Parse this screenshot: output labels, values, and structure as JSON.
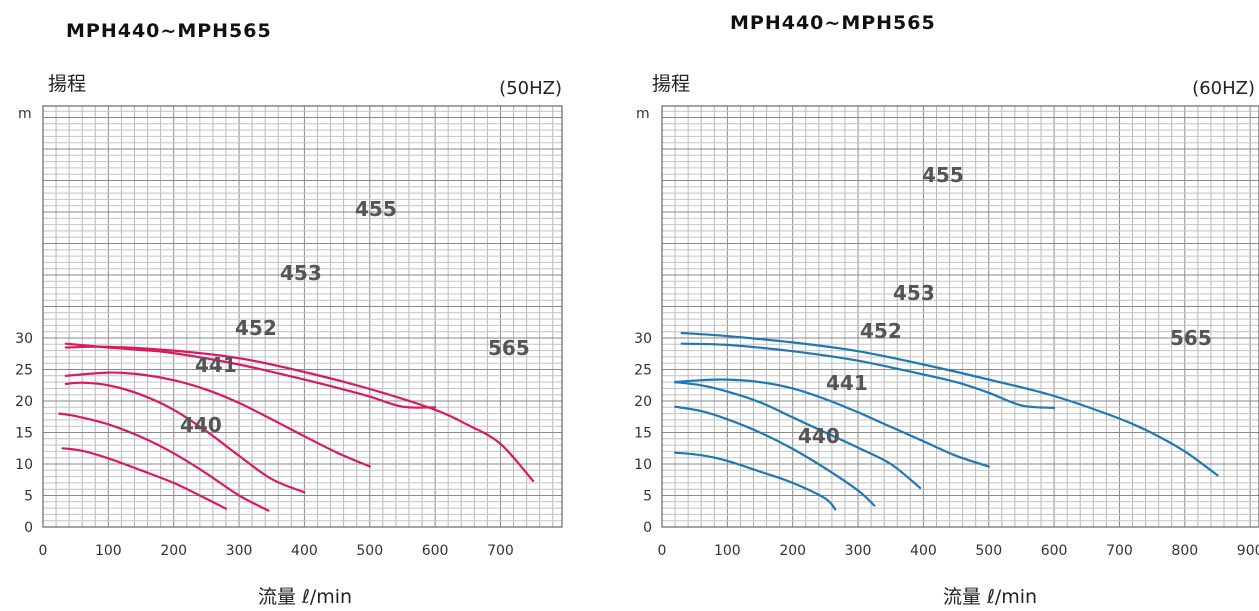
{
  "chart_data": [
    {
      "type": "line",
      "title": "MPH440~MPH565",
      "frequency": "(50HZ)",
      "ylabel": "揚程",
      "yunit": "m",
      "xlabel": "流量 ℓ/min",
      "xlim": [
        0,
        800
      ],
      "ylim": [
        0,
        32
      ],
      "xticks": [
        "0",
        "100",
        "200",
        "300",
        "400",
        "500",
        "600",
        "700"
      ],
      "yticks": [
        "0",
        "5",
        "10",
        "15",
        "20",
        "25",
        "30"
      ],
      "grid": true,
      "line_color": "#d81b60",
      "series": [
        {
          "name": "440",
          "points": [
            [
              30,
              12.5
            ],
            [
              60,
              12.1
            ],
            [
              100,
              10.9
            ],
            [
              150,
              9.0
            ],
            [
              200,
              7.0
            ],
            [
              240,
              5.0
            ],
            [
              280,
              2.9
            ]
          ]
        },
        {
          "name": "441",
          "points": [
            [
              25,
              18.0
            ],
            [
              50,
              17.6
            ],
            [
              100,
              16.3
            ],
            [
              150,
              14.3
            ],
            [
              200,
              11.7
            ],
            [
              250,
              8.5
            ],
            [
              300,
              5.0
            ],
            [
              345,
              2.6
            ]
          ]
        },
        {
          "name": "452",
          "points": [
            [
              35,
              22.7
            ],
            [
              60,
              22.9
            ],
            [
              100,
              22.5
            ],
            [
              150,
              21.0
            ],
            [
              200,
              18.6
            ],
            [
              250,
              15.2
            ],
            [
              300,
              11.3
            ],
            [
              350,
              7.6
            ],
            [
              400,
              5.5
            ]
          ]
        },
        {
          "name": "453",
          "points": [
            [
              35,
              24.0
            ],
            [
              100,
              24.5
            ],
            [
              150,
              24.2
            ],
            [
              200,
              23.3
            ],
            [
              250,
              21.8
            ],
            [
              300,
              19.7
            ],
            [
              350,
              17.1
            ],
            [
              400,
              14.4
            ],
            [
              450,
              11.8
            ],
            [
              500,
              9.6
            ]
          ]
        },
        {
          "name": "455",
          "points": [
            [
              35,
              29.1
            ],
            [
              100,
              28.5
            ],
            [
              150,
              28.1
            ],
            [
              200,
              27.6
            ],
            [
              300,
              25.8
            ],
            [
              400,
              23.4
            ],
            [
              450,
              22.1
            ],
            [
              500,
              20.7
            ],
            [
              550,
              19.1
            ],
            [
              600,
              19.0
            ]
          ]
        },
        {
          "name": "565",
          "points": [
            [
              35,
              28.5
            ],
            [
              100,
              28.6
            ],
            [
              200,
              28.0
            ],
            [
              300,
              26.8
            ],
            [
              400,
              24.6
            ],
            [
              500,
              21.9
            ],
            [
              600,
              18.6
            ],
            [
              650,
              16.2
            ],
            [
              700,
              13.2
            ],
            [
              750,
              7.3
            ]
          ]
        }
      ],
      "series_labels": [
        "455",
        "453",
        "452",
        "441",
        "440",
        "565"
      ]
    },
    {
      "type": "line",
      "title": "MPH440~MPH565",
      "frequency": "(60HZ)",
      "ylabel": "揚程",
      "yunit": "m",
      "xlabel": "流量 ℓ/min",
      "xlim": [
        0,
        920
      ],
      "ylim": [
        0,
        32
      ],
      "xticks": [
        "0",
        "100",
        "200",
        "300",
        "400",
        "500",
        "600",
        "700",
        "800",
        "900"
      ],
      "yticks": [
        "0",
        "5",
        "10",
        "15",
        "20",
        "25",
        "30"
      ],
      "grid": true,
      "line_color": "#1f78b4",
      "series": [
        {
          "name": "440",
          "points": [
            [
              20,
              11.8
            ],
            [
              60,
              11.4
            ],
            [
              100,
              10.5
            ],
            [
              150,
              8.8
            ],
            [
              200,
              7.0
            ],
            [
              250,
              4.5
            ],
            [
              265,
              2.8
            ]
          ]
        },
        {
          "name": "441",
          "points": [
            [
              20,
              19.1
            ],
            [
              60,
              18.4
            ],
            [
              100,
              17.1
            ],
            [
              150,
              15.0
            ],
            [
              200,
              12.4
            ],
            [
              250,
              9.3
            ],
            [
              300,
              5.8
            ],
            [
              325,
              3.4
            ]
          ]
        },
        {
          "name": "452",
          "points": [
            [
              20,
              23.0
            ],
            [
              60,
              22.5
            ],
            [
              100,
              21.5
            ],
            [
              150,
              19.8
            ],
            [
              200,
              17.4
            ],
            [
              250,
              15.0
            ],
            [
              300,
              12.6
            ],
            [
              350,
              10.0
            ],
            [
              395,
              6.2
            ]
          ]
        },
        {
          "name": "453",
          "points": [
            [
              20,
              23.0
            ],
            [
              60,
              23.3
            ],
            [
              100,
              23.4
            ],
            [
              150,
              23.0
            ],
            [
              200,
              22.0
            ],
            [
              250,
              20.3
            ],
            [
              300,
              18.2
            ],
            [
              350,
              15.9
            ],
            [
              400,
              13.6
            ],
            [
              450,
              11.3
            ],
            [
              500,
              9.6
            ]
          ]
        },
        {
          "name": "455",
          "points": [
            [
              30,
              29.1
            ],
            [
              100,
              28.9
            ],
            [
              200,
              27.9
            ],
            [
              300,
              26.4
            ],
            [
              400,
              24.2
            ],
            [
              450,
              23.0
            ],
            [
              500,
              21.3
            ],
            [
              550,
              19.3
            ],
            [
              600,
              18.9
            ]
          ]
        },
        {
          "name": "565",
          "points": [
            [
              30,
              30.8
            ],
            [
              100,
              30.3
            ],
            [
              200,
              29.3
            ],
            [
              300,
              27.9
            ],
            [
              400,
              25.8
            ],
            [
              500,
              23.4
            ],
            [
              600,
              20.8
            ],
            [
              700,
              17.2
            ],
            [
              750,
              14.9
            ],
            [
              800,
              12.0
            ],
            [
              850,
              8.2
            ]
          ]
        }
      ],
      "series_labels": [
        "455",
        "453",
        "452",
        "441",
        "440",
        "565"
      ]
    }
  ]
}
